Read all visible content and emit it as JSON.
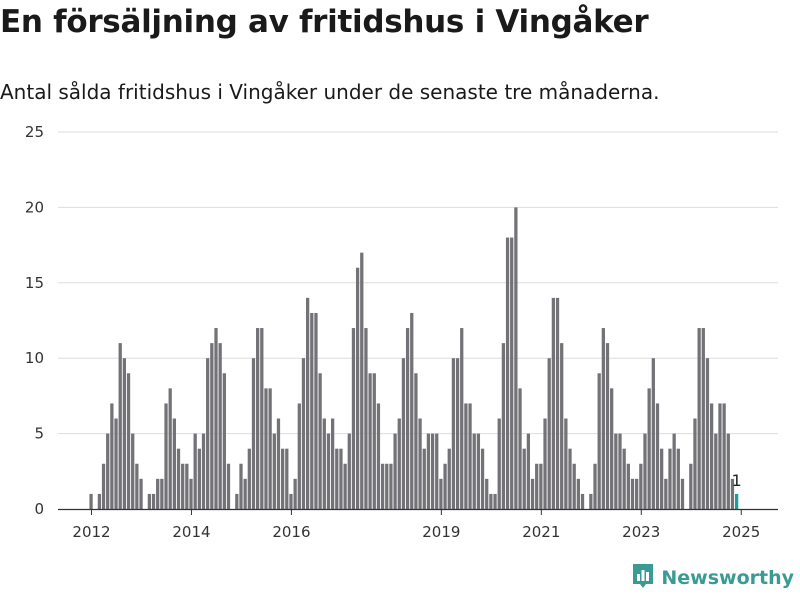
{
  "header": {
    "title": "En försäljning av fritidshus i Vingåker",
    "subtitle": "Antal sålda fritidshus i Vingåker under de senaste tre månaderna."
  },
  "brand": {
    "name": "Newsworthy",
    "color": "#3a9b94",
    "icon": "newsworthy-chart-icon"
  },
  "colors": {
    "bar": "#737277",
    "highlight": "#18a098",
    "grid": "#dddddd",
    "axis": "#333333"
  },
  "chart_data": {
    "type": "bar",
    "title": "En försäljning av fritidshus i Vingåker",
    "subtitle": "Antal sålda fritidshus i Vingåker under de senaste tre månaderna.",
    "xlabel": "",
    "ylabel": "",
    "ylim": [
      0,
      25
    ],
    "yticks": [
      0,
      5,
      10,
      15,
      20,
      25
    ],
    "xticks": [
      "2012",
      "2014",
      "2016",
      "2019",
      "2021",
      "2023",
      "2025"
    ],
    "grid": true,
    "legend": "none",
    "start": "2012-01",
    "frequency": "monthly",
    "values": [
      1,
      0,
      1,
      3,
      5,
      7,
      6,
      11,
      10,
      9,
      5,
      3,
      2,
      0,
      1,
      1,
      2,
      2,
      7,
      8,
      6,
      4,
      3,
      3,
      2,
      5,
      4,
      5,
      10,
      11,
      12,
      11,
      9,
      3,
      0,
      1,
      3,
      2,
      4,
      10,
      12,
      12,
      8,
      8,
      5,
      6,
      4,
      4,
      1,
      2,
      7,
      10,
      14,
      13,
      13,
      9,
      6,
      5,
      6,
      4,
      4,
      3,
      5,
      12,
      16,
      17,
      12,
      9,
      9,
      7,
      3,
      3,
      3,
      5,
      6,
      10,
      12,
      13,
      9,
      6,
      4,
      5,
      5,
      5,
      2,
      3,
      4,
      10,
      10,
      12,
      7,
      7,
      5,
      5,
      4,
      2,
      1,
      1,
      6,
      11,
      18,
      18,
      20,
      8,
      4,
      5,
      2,
      3,
      3,
      6,
      10,
      14,
      14,
      11,
      6,
      4,
      3,
      2,
      1,
      0,
      1,
      3,
      9,
      12,
      11,
      8,
      5,
      5,
      4,
      3,
      2,
      2,
      3,
      5,
      8,
      10,
      7,
      4,
      2,
      4,
      5,
      4,
      2,
      0,
      3,
      6,
      12,
      12,
      10,
      7,
      5,
      7,
      7,
      5,
      2,
      1
    ],
    "last_value_label": "1"
  }
}
